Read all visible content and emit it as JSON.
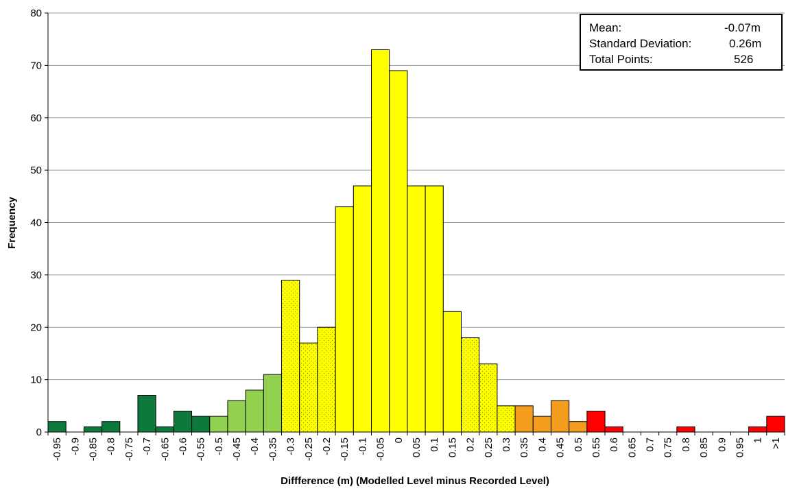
{
  "chart_data": {
    "type": "bar",
    "title": "",
    "xlabel": "Diffference  (m) (Modelled  Level  minus  Recorded Level)",
    "ylabel": "Frequency",
    "ylim": [
      0,
      80
    ],
    "yticks": [
      "0",
      "10",
      "20",
      "30",
      "40",
      "50",
      "60",
      "70",
      "80"
    ],
    "grid": "horizontal",
    "categories": [
      "-0.95",
      "-0.9",
      "-0.85",
      "-0.8",
      "-0.75",
      "-0.7",
      "-0.65",
      "-0.6",
      "-0.55",
      "-0.5",
      "-0.45",
      "-0.4",
      "-0.35",
      "-0.3",
      "-0.25",
      "-0.2",
      "-0.15",
      "-0.1",
      "-0.05",
      "0",
      "0.05",
      "0.1",
      "0.15",
      "0.2",
      "0.25",
      "0.3",
      "0.35",
      "0.4",
      "0.45",
      "0.5",
      "0.55",
      "0.6",
      "0.65",
      "0.7",
      "0.75",
      "0.8",
      "0.85",
      "0.9",
      "0.95",
      "1",
      ">1"
    ],
    "values": [
      2,
      0,
      1,
      2,
      0,
      7,
      1,
      4,
      3,
      3,
      6,
      8,
      11,
      29,
      17,
      20,
      43,
      47,
      73,
      69,
      47,
      47,
      23,
      18,
      13,
      5,
      5,
      3,
      6,
      2,
      4,
      1,
      0,
      0,
      0,
      1,
      0,
      0,
      0,
      1,
      3
    ],
    "bar_colors": [
      "#0d7a3c",
      "#0d7a3c",
      "#0d7a3c",
      "#0d7a3c",
      "#0d7a3c",
      "#0d7a3c",
      "#0d7a3c",
      "#0d7a3c",
      "#0d7a3c",
      "#92d050",
      "#92d050",
      "#92d050",
      "#92d050",
      "#ffff00",
      "#ffff00",
      "#ffff00",
      "#ffff00",
      "#ffff00",
      "#ffff00",
      "#ffff00",
      "#ffff00",
      "#ffff00",
      "#ffff00",
      "#ffff00",
      "#ffff00",
      "#ffff00",
      "#f39c1e",
      "#f39c1e",
      "#f39c1e",
      "#f39c1e",
      "#ff0000",
      "#ff0000",
      "#ff0000",
      "#ff0000",
      "#ff0000",
      "#ff0000",
      "#ff0000",
      "#ff0000",
      "#ff0000",
      "#ff0000",
      "#ff0000"
    ],
    "bar_pattern": [
      "none",
      "none",
      "none",
      "none",
      "none",
      "none",
      "none",
      "none",
      "none",
      "none",
      "none",
      "none",
      "none",
      "dotted",
      "dotted",
      "dotted",
      "none",
      "none",
      "none",
      "none",
      "none",
      "none",
      "none",
      "dotted",
      "dotted",
      "dotted",
      "none",
      "none",
      "none",
      "none",
      "none",
      "none",
      "none",
      "none",
      "none",
      "none",
      "none",
      "none",
      "none",
      "none",
      "none"
    ]
  },
  "stats": {
    "mean_label": "Mean:",
    "mean_value": "-0.07m",
    "sd_label": "Standard  Deviation:",
    "sd_value": "0.26m",
    "total_label": "Total Points:",
    "total_value": "526"
  }
}
